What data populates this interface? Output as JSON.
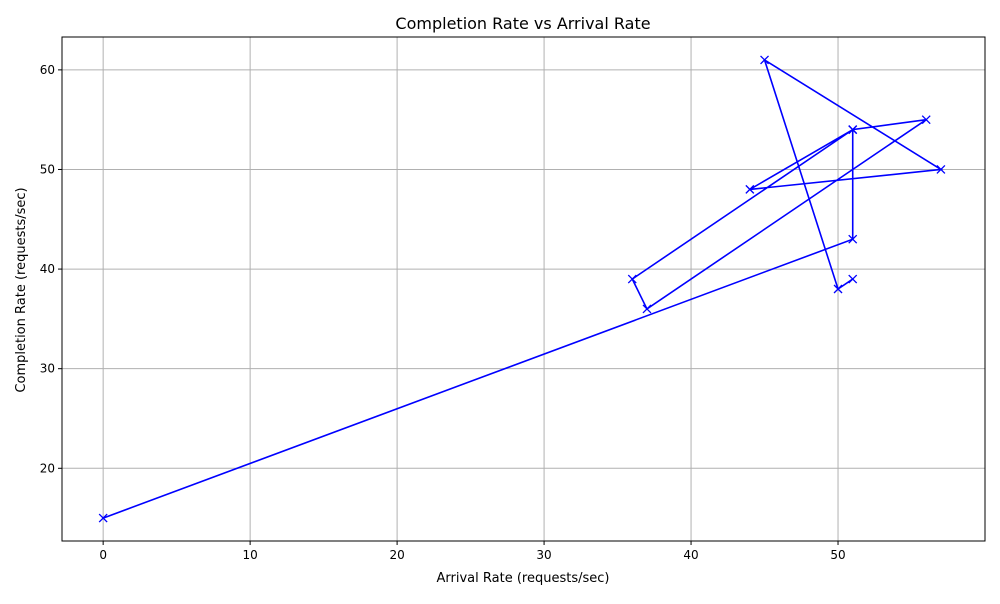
{
  "chart_data": {
    "type": "line",
    "title": "Completion Rate vs Arrival Rate",
    "xlabel": "Arrival Rate (requests/sec)",
    "ylabel": "Completion Rate (requests/sec)",
    "xlim": [
      -2.8,
      60
    ],
    "ylim": [
      12.7,
      63.3
    ],
    "xticks": [
      0,
      10,
      20,
      30,
      40,
      50
    ],
    "yticks": [
      20,
      30,
      40,
      50,
      60
    ],
    "grid": true,
    "marker": "x",
    "line_color": "#0000ff",
    "series": [
      {
        "x": [
          0,
          51,
          51,
          56,
          37,
          36,
          51,
          44,
          57,
          45,
          50,
          51
        ],
        "y": [
          15,
          43,
          54,
          55,
          36,
          39,
          54,
          48,
          50,
          61,
          38,
          39
        ]
      }
    ]
  }
}
